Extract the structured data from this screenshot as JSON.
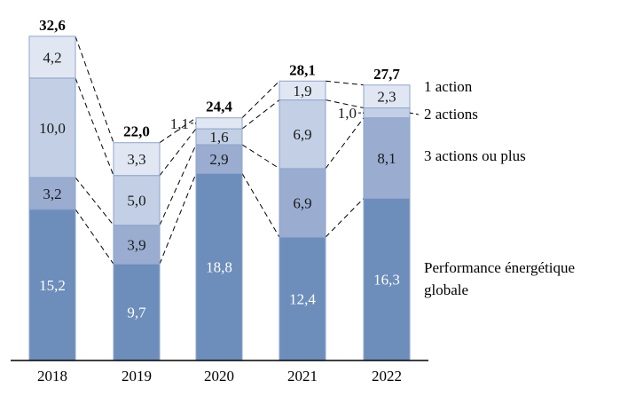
{
  "chart_data": {
    "type": "bar",
    "stacked": true,
    "categories": [
      "2018",
      "2019",
      "2020",
      "2021",
      "2022"
    ],
    "series": [
      {
        "name": "Performance énergétique globale",
        "values": [
          15.2,
          9.7,
          18.8,
          12.4,
          16.3
        ],
        "labels": [
          "15,2",
          "9,7",
          "18,8",
          "12,4",
          "16,3"
        ],
        "color": "#6d8dbb",
        "label_color": "#ffffff"
      },
      {
        "name": "3 actions ou plus",
        "values": [
          3.2,
          3.9,
          2.9,
          6.9,
          8.1
        ],
        "labels": [
          "3,2",
          "3,9",
          "2,9",
          "6,9",
          "8,1"
        ],
        "color": "#9aadd0",
        "label_color": "#1a1a1a"
      },
      {
        "name": "2 actions",
        "values": [
          10.0,
          5.0,
          1.6,
          6.9,
          1.0
        ],
        "labels": [
          "10,0",
          "5,0",
          "1,6",
          "6,9",
          "1,0"
        ],
        "color": "#c3cfe4",
        "label_color": "#1a1a1a"
      },
      {
        "name": "1 action",
        "values": [
          4.2,
          3.3,
          1.1,
          1.9,
          2.3
        ],
        "labels": [
          "4,2",
          "3,3",
          "1,1",
          "1,9",
          "2,3"
        ],
        "color": "#e1e7f2",
        "label_color": "#1a1a1a"
      }
    ],
    "totals": [
      "32,6",
      "22,0",
      "24,4",
      "28,1",
      "27,7"
    ],
    "legend_lines": [
      [
        "1 action"
      ],
      [
        "2 actions"
      ],
      [
        "3 actions ou plus"
      ],
      [
        "Performance énergétique",
        "globale"
      ]
    ],
    "ylim": [
      0,
      34
    ],
    "grid": false,
    "legend": "right, labels beside last bar",
    "title": "",
    "xlabel": "",
    "ylabel": ""
  }
}
